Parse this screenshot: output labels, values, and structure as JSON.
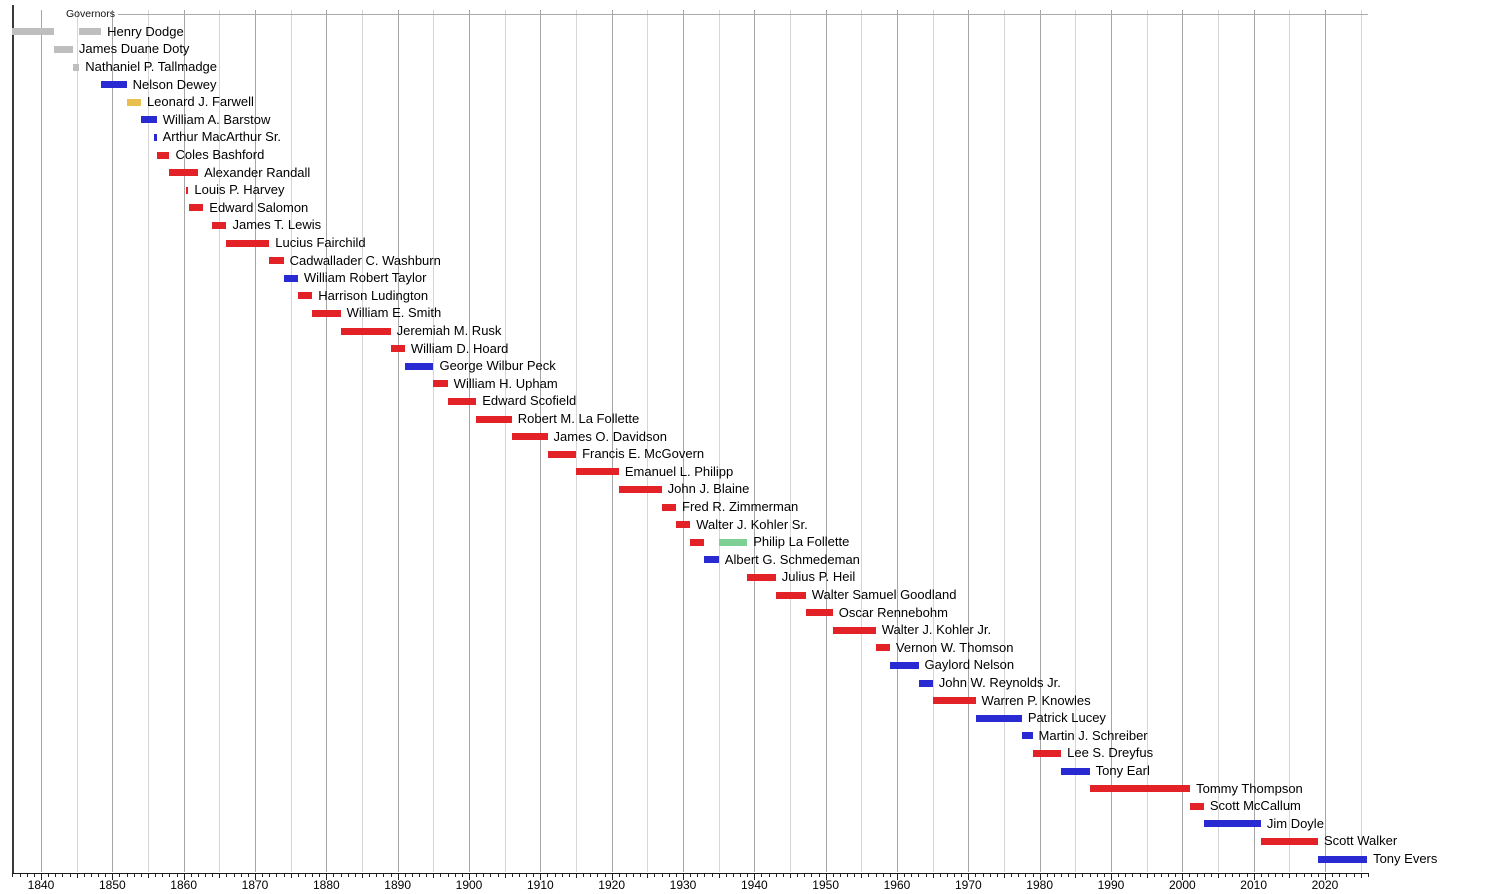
{
  "chart_data": {
    "type": "gantt",
    "title": "Governors",
    "x_axis": {
      "start": 1836,
      "end": 2026,
      "gridline_interval_years": 5,
      "minor_tick_interval_years": 1,
      "decade_labels": [
        "1840",
        "1850",
        "1860",
        "1870",
        "1880",
        "1890",
        "1900",
        "1910",
        "1920",
        "1930",
        "1940",
        "1950",
        "1960",
        "1970",
        "1980",
        "1990",
        "2000",
        "2010",
        "2020"
      ]
    },
    "party_colors": {
      "territorial": "#bebebe",
      "democratic": "#2a2ad2",
      "whig": "#e9c050",
      "republican": "#e32228",
      "progressive": "#7dd093"
    },
    "governors": [
      {
        "name": "Henry Dodge",
        "bars": [
          {
            "start": 1836.0,
            "end": 1841.76,
            "party": "territorial"
          },
          {
            "start": 1845.36,
            "end": 1848.43,
            "party": "territorial"
          }
        ]
      },
      {
        "name": "James Duane Doty",
        "bars": [
          {
            "start": 1841.76,
            "end": 1844.47,
            "party": "territorial"
          }
        ]
      },
      {
        "name": "Nathaniel P. Tallmadge",
        "bars": [
          {
            "start": 1844.47,
            "end": 1845.36,
            "party": "territorial"
          }
        ]
      },
      {
        "name": "Nelson Dewey",
        "bars": [
          {
            "start": 1848.43,
            "end": 1852.01,
            "party": "democratic"
          }
        ]
      },
      {
        "name": "Leonard J. Farwell",
        "bars": [
          {
            "start": 1852.01,
            "end": 1854.01,
            "party": "whig"
          }
        ]
      },
      {
        "name": "William A. Barstow",
        "bars": [
          {
            "start": 1854.01,
            "end": 1856.22,
            "party": "democratic"
          }
        ]
      },
      {
        "name": "Arthur MacArthur Sr.",
        "bars": [
          {
            "start": 1855.9,
            "end": 1856.2,
            "party": "democratic"
          }
        ]
      },
      {
        "name": "Coles Bashford",
        "bars": [
          {
            "start": 1856.23,
            "end": 1858.01,
            "party": "republican"
          }
        ]
      },
      {
        "name": "Alexander Randall",
        "bars": [
          {
            "start": 1858.01,
            "end": 1862.02,
            "party": "republican"
          }
        ]
      },
      {
        "name": "Louis P. Harvey",
        "bars": [
          {
            "start": 1860.3,
            "end": 1860.66,
            "party": "republican"
          }
        ]
      },
      {
        "name": "Edward Salomon",
        "bars": [
          {
            "start": 1860.72,
            "end": 1862.75,
            "party": "republican"
          }
        ]
      },
      {
        "name": "James T. Lewis",
        "bars": [
          {
            "start": 1864.01,
            "end": 1866.0,
            "party": "republican"
          }
        ]
      },
      {
        "name": "Lucius Fairchild",
        "bars": [
          {
            "start": 1866.0,
            "end": 1872.0,
            "party": "republican"
          }
        ]
      },
      {
        "name": "Cadwallader C. Washburn",
        "bars": [
          {
            "start": 1872.0,
            "end": 1874.01,
            "party": "republican"
          }
        ]
      },
      {
        "name": "William Robert Taylor",
        "bars": [
          {
            "start": 1874.01,
            "end": 1876.01,
            "party": "democratic"
          }
        ]
      },
      {
        "name": "Harrison Ludington",
        "bars": [
          {
            "start": 1876.01,
            "end": 1878.02,
            "party": "republican"
          }
        ]
      },
      {
        "name": "William E. Smith",
        "bars": [
          {
            "start": 1878.02,
            "end": 1882.0,
            "party": "republican"
          }
        ]
      },
      {
        "name": "Jeremiah M. Rusk",
        "bars": [
          {
            "start": 1882.0,
            "end": 1889.02,
            "party": "republican"
          }
        ]
      },
      {
        "name": "William D. Hoard",
        "bars": [
          {
            "start": 1889.02,
            "end": 1891.01,
            "party": "republican"
          }
        ]
      },
      {
        "name": "George Wilbur Peck",
        "bars": [
          {
            "start": 1891.01,
            "end": 1895.02,
            "party": "democratic"
          }
        ]
      },
      {
        "name": "William H. Upham",
        "bars": [
          {
            "start": 1895.02,
            "end": 1897.01,
            "party": "republican"
          }
        ]
      },
      {
        "name": "Edward Scofield",
        "bars": [
          {
            "start": 1897.01,
            "end": 1901.02,
            "party": "republican"
          }
        ]
      },
      {
        "name": "Robert M. La Follette",
        "bars": [
          {
            "start": 1901.02,
            "end": 1906.0,
            "party": "republican"
          }
        ]
      },
      {
        "name": "James O. Davidson",
        "bars": [
          {
            "start": 1906.0,
            "end": 1911.01,
            "party": "republican"
          }
        ]
      },
      {
        "name": "Francis E. McGovern",
        "bars": [
          {
            "start": 1911.01,
            "end": 1915.01,
            "party": "republican"
          }
        ]
      },
      {
        "name": "Emanuel L. Philipp",
        "bars": [
          {
            "start": 1915.01,
            "end": 1921.01,
            "party": "republican"
          }
        ]
      },
      {
        "name": "John J. Blaine",
        "bars": [
          {
            "start": 1921.01,
            "end": 1927.01,
            "party": "republican"
          }
        ]
      },
      {
        "name": "Fred R. Zimmerman",
        "bars": [
          {
            "start": 1927.01,
            "end": 1929.02,
            "party": "republican"
          }
        ]
      },
      {
        "name": "Walter J. Kohler Sr.",
        "bars": [
          {
            "start": 1929.02,
            "end": 1931.01,
            "party": "republican"
          }
        ]
      },
      {
        "name": "Philip La Follette",
        "bars": [
          {
            "start": 1931.01,
            "end": 1933.0,
            "party": "republican"
          },
          {
            "start": 1935.02,
            "end": 1939.0,
            "party": "progressive"
          }
        ]
      },
      {
        "name": "Albert G. Schmedeman",
        "bars": [
          {
            "start": 1933.0,
            "end": 1935.02,
            "party": "democratic"
          }
        ]
      },
      {
        "name": "Julius P. Heil",
        "bars": [
          {
            "start": 1939.0,
            "end": 1943.01,
            "party": "republican"
          }
        ]
      },
      {
        "name": "Walter Samuel Goodland",
        "bars": [
          {
            "start": 1943.01,
            "end": 1947.2,
            "party": "republican"
          }
        ]
      },
      {
        "name": "Oscar Rennebohm",
        "bars": [
          {
            "start": 1947.2,
            "end": 1951.0,
            "party": "republican"
          }
        ]
      },
      {
        "name": "Walter J. Kohler Jr.",
        "bars": [
          {
            "start": 1951.0,
            "end": 1957.02,
            "party": "republican"
          }
        ]
      },
      {
        "name": "Vernon W. Thomson",
        "bars": [
          {
            "start": 1957.02,
            "end": 1959.01,
            "party": "republican"
          }
        ]
      },
      {
        "name": "Gaylord Nelson",
        "bars": [
          {
            "start": 1959.01,
            "end": 1963.02,
            "party": "democratic"
          }
        ]
      },
      {
        "name": "John W. Reynolds Jr.",
        "bars": [
          {
            "start": 1963.02,
            "end": 1965.01,
            "party": "democratic"
          }
        ]
      },
      {
        "name": "Warren P. Knowles",
        "bars": [
          {
            "start": 1965.01,
            "end": 1971.01,
            "party": "republican"
          }
        ]
      },
      {
        "name": "Patrick Lucey",
        "bars": [
          {
            "start": 1971.01,
            "end": 1977.51,
            "party": "democratic"
          }
        ]
      },
      {
        "name": "Martin J. Schreiber",
        "bars": [
          {
            "start": 1977.51,
            "end": 1979.0,
            "party": "democratic"
          }
        ]
      },
      {
        "name": "Lee S. Dreyfus",
        "bars": [
          {
            "start": 1979.0,
            "end": 1983.01,
            "party": "republican"
          }
        ]
      },
      {
        "name": "Tony Earl",
        "bars": [
          {
            "start": 1983.01,
            "end": 1987.01,
            "party": "democratic"
          }
        ]
      },
      {
        "name": "Tommy Thompson",
        "bars": [
          {
            "start": 1987.01,
            "end": 2001.09,
            "party": "republican"
          }
        ]
      },
      {
        "name": "Scott McCallum",
        "bars": [
          {
            "start": 2001.09,
            "end": 2003.02,
            "party": "republican"
          }
        ]
      },
      {
        "name": "Jim Doyle",
        "bars": [
          {
            "start": 2003.02,
            "end": 2011.01,
            "party": "democratic"
          }
        ]
      },
      {
        "name": "Scott Walker",
        "bars": [
          {
            "start": 2011.01,
            "end": 2019.02,
            "party": "republican"
          }
        ]
      },
      {
        "name": "Tony Evers",
        "bars": [
          {
            "start": 2019.02,
            "end": 2025.9,
            "party": "democratic"
          }
        ]
      }
    ]
  }
}
